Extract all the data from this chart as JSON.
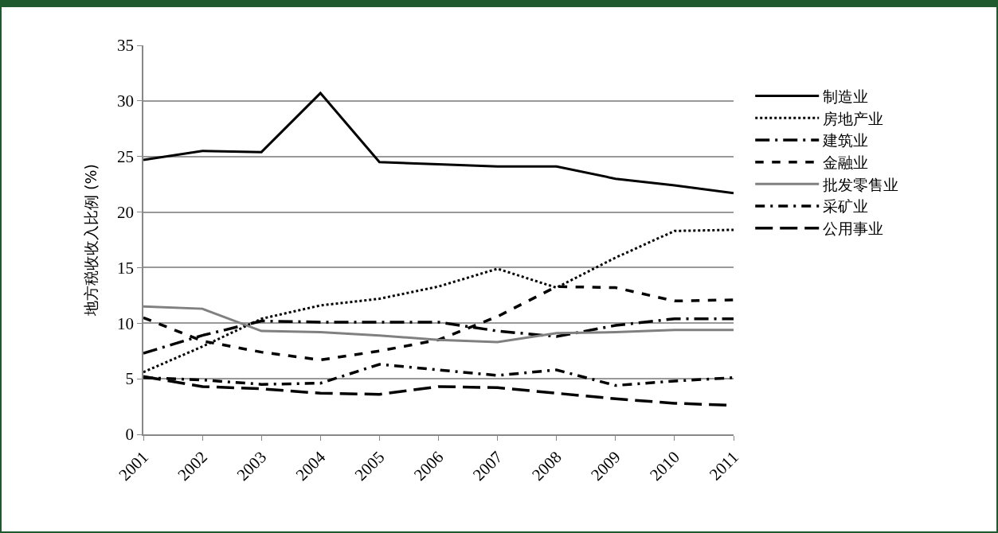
{
  "chart_data": {
    "type": "line",
    "ylabel": "地方税收收入比例 (%)",
    "categories": [
      "2001",
      "2002",
      "2003",
      "2004",
      "2005",
      "2006",
      "2007",
      "2008",
      "2009",
      "2010",
      "2011"
    ],
    "series": [
      {
        "name": "制造业",
        "color": "#000000",
        "line_style": "solid",
        "values": [
          24.7,
          25.5,
          25.4,
          30.7,
          24.5,
          24.3,
          24.1,
          24.1,
          23.0,
          22.4,
          21.7
        ]
      },
      {
        "name": "房地产业",
        "color": "#000000",
        "line_style": "dotted",
        "values": [
          5.6,
          7.9,
          10.4,
          11.6,
          12.2,
          13.3,
          14.9,
          13.2,
          15.9,
          18.3,
          18.4
        ]
      },
      {
        "name": "建筑业",
        "color": "#000000",
        "line_style": "dashdot",
        "values": [
          7.3,
          8.9,
          10.2,
          10.1,
          10.1,
          10.1,
          9.3,
          8.8,
          9.8,
          10.4,
          10.4
        ]
      },
      {
        "name": "金融业",
        "color": "#000000",
        "line_style": "dashed",
        "values": [
          10.5,
          8.4,
          7.4,
          6.7,
          7.5,
          8.5,
          10.6,
          13.3,
          13.2,
          12.0,
          12.1
        ]
      },
      {
        "name": "批发零售业",
        "color": "#808080",
        "line_style": "solid",
        "values": [
          11.5,
          11.3,
          9.3,
          9.2,
          8.9,
          8.5,
          8.3,
          9.1,
          9.2,
          9.4,
          9.4
        ]
      },
      {
        "name": "采矿业",
        "color": "#000000",
        "line_style": "dashdotdot",
        "values": [
          5.1,
          4.9,
          4.5,
          4.6,
          6.3,
          5.8,
          5.3,
          5.8,
          4.4,
          4.8,
          5.1
        ]
      },
      {
        "name": "公用事业",
        "color": "#000000",
        "line_style": "longdash",
        "values": [
          5.2,
          4.3,
          4.1,
          3.7,
          3.6,
          4.3,
          4.2,
          3.7,
          3.2,
          2.8,
          2.6
        ]
      }
    ],
    "ylim": [
      0,
      35
    ],
    "yticks": [
      0,
      5,
      10,
      15,
      20,
      25,
      30,
      35
    ],
    "grid": "y",
    "legend": "right",
    "marker": "none"
  }
}
